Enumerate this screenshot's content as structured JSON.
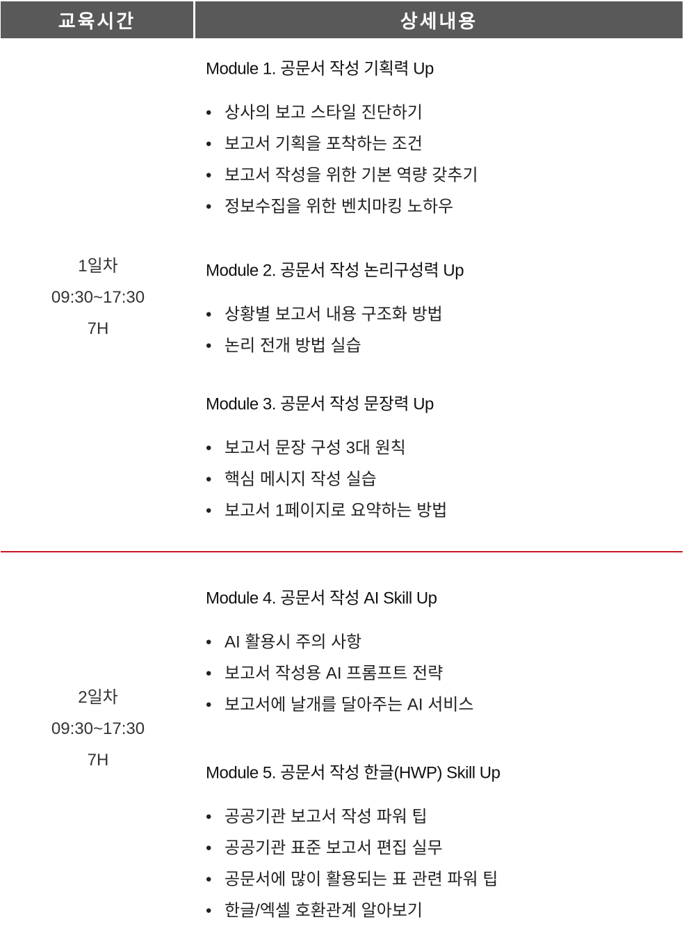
{
  "header": {
    "time_col": "교육시간",
    "detail_col": "상세내용"
  },
  "accent_color": "#c8161d",
  "header_color": "#595959",
  "days": [
    {
      "day": "1일차",
      "time": "09:30~17:30",
      "hours": "7H",
      "modules": [
        {
          "title": "Module 1. 공문서 작성 기획력 Up",
          "items": [
            "상사의 보고 스타일 진단하기",
            "보고서 기획을 포착하는 조건",
            "보고서 작성을 위한 기본 역량 갖추기",
            "정보수집을 위한 벤치마킹 노하우"
          ]
        },
        {
          "title": "Module 2. 공문서 작성  논리구성력 Up",
          "items": [
            "상황별 보고서 내용 구조화 방법",
            "논리 전개 방법 실습"
          ]
        },
        {
          "title": "Module 3. 공문서 작성 문장력 Up",
          "items": [
            "보고서 문장 구성 3대 원칙",
            "핵심 메시지 작성 실습",
            "보고서 1페이지로 요약하는 방법"
          ]
        }
      ]
    },
    {
      "day": "2일차",
      "time": "09:30~17:30",
      "hours": "7H",
      "modules": [
        {
          "title": "Module 4. 공문서 작성 AI Skill Up",
          "items": [
            "AI 활용시 주의 사항",
            "보고서 작성용 AI 프롬프트 전략",
            "보고서에 날개를 달아주는 AI 서비스"
          ]
        },
        {
          "title": "Module 5. 공문서 작성 한글(HWP) Skill Up",
          "items": [
            "공공기관 보고서 작성 파워 팁",
            "공공기관 표준 보고서 편집 실무",
            "공문서에 많이 활용되는 표 관련 파워 팁",
            "한글/엑셀 호환관계 알아보기"
          ]
        }
      ]
    }
  ]
}
